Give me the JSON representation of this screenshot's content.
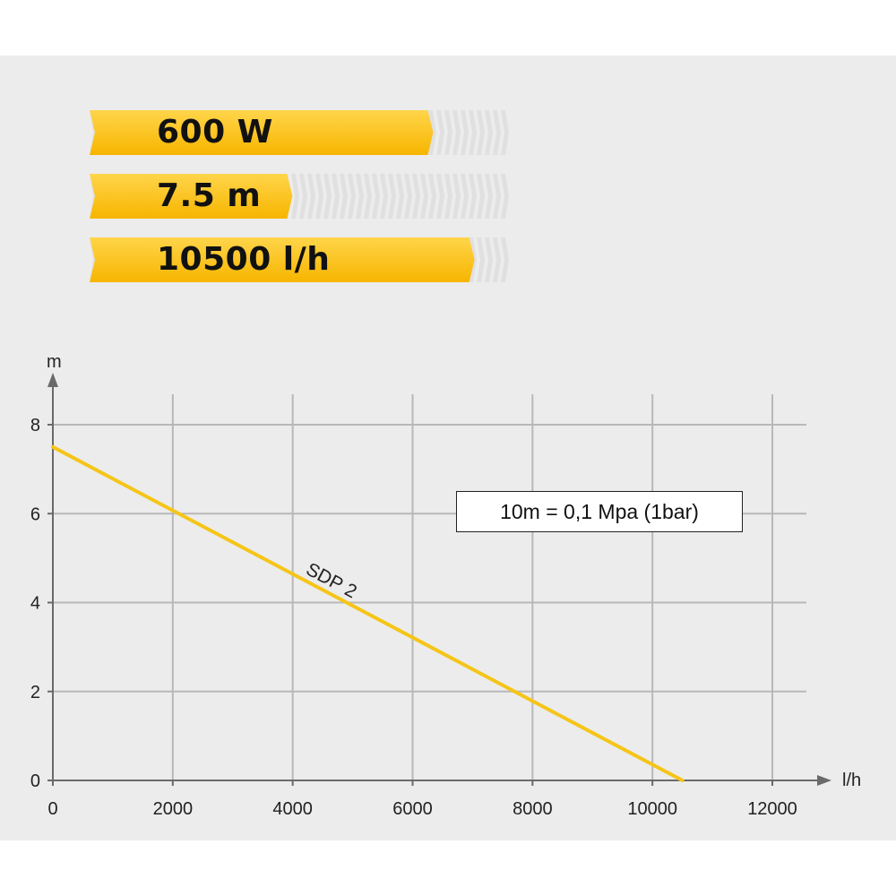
{
  "specs": [
    {
      "label": "600 W",
      "level": 0.83
    },
    {
      "label": "7.5 m",
      "level": 0.49
    },
    {
      "label": "10500 l/h",
      "level": 0.93
    }
  ],
  "colors": {
    "accent": "#f7b500",
    "accent_light": "#ffd54a",
    "series": "#f5c518",
    "grid": "#b8b8b8",
    "axis": "#6a6a6a",
    "track": "#dcdcdc"
  },
  "note": "10m = 0,1 Mpa (1bar)",
  "chart_data": {
    "type": "line",
    "title": "",
    "xlabel": "l/h",
    "ylabel": "m",
    "xlim": [
      0,
      12000
    ],
    "ylim": [
      0,
      8
    ],
    "x_ticks": [
      0,
      2000,
      4000,
      6000,
      8000,
      10000,
      12000
    ],
    "y_ticks": [
      0,
      2,
      4,
      6,
      8
    ],
    "grid": true,
    "series": [
      {
        "name": "SDP 2",
        "x": [
          0,
          10500
        ],
        "y": [
          7.5,
          0
        ]
      }
    ]
  }
}
